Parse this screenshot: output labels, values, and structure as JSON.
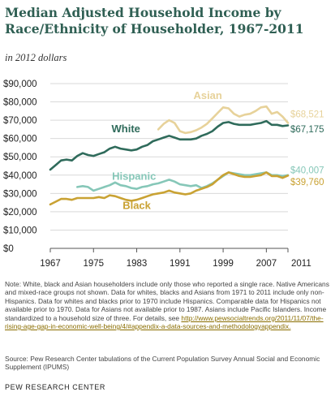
{
  "title": "Median Adjusted Household Income by Race/Ethnicity of Householder, 1967-2011",
  "subtitle": "in 2012 dollars",
  "note": {
    "text": "Note: White, black and Asian householders include only those who reported a single race. Native Americans and mixed-race groups not shown. Data for whites, blacks and Asians from 1971 to 2011 include only non-Hispanics. Data for whites and blacks prior to 1970 include Hispanics. Comparable data for Hispanics not available prior to 1970. Data for Asians not available prior to 1987. Asians include Pacific Islanders. Income standardized to a household size of three. For details, see",
    "link": "http://www.pewsocialtrends.org/2011/11/07/the-rising-age-gap-in-economic-well-being/4/#appendix-a-data-sources-and-methodologyappendix."
  },
  "source": "Source: Pew Research Center tabulations of the Current Population Survey Annual Social and Economic Supplement (IPUMS)",
  "brand": "PEW RESEARCH CENTER",
  "colors": {
    "white": "#2f6b5b",
    "asian": "#e7d29a",
    "hispanic": "#86c7b8",
    "black": "#c9a233",
    "grid": "#d9d9d9",
    "axis": "#555555"
  },
  "chart_data": {
    "type": "line",
    "ylim": [
      0,
      90000
    ],
    "xlim": [
      1967,
      2011
    ],
    "yticks": [
      "$90,000",
      "$80,000",
      "$70,000",
      "$60,000",
      "$50,000",
      "$40,000",
      "$30,000",
      "$20,000",
      "$10,000",
      "$0"
    ],
    "ytick_values": [
      90000,
      80000,
      70000,
      60000,
      50000,
      40000,
      30000,
      20000,
      10000,
      0
    ],
    "xticks": [
      "1967",
      "1975",
      "1983",
      "1991",
      "1999",
      "2007",
      "2011"
    ],
    "xtick_values": [
      1967,
      1975,
      1983,
      1991,
      1999,
      2007,
      2011
    ],
    "grid": "horizontal",
    "series": [
      {
        "key": "asian",
        "name": "Asian",
        "end_label": "$68,521",
        "points": [
          [
            1987,
            65000
          ],
          [
            1988,
            68000
          ],
          [
            1989,
            70000
          ],
          [
            1990,
            68500
          ],
          [
            1991,
            64000
          ],
          [
            1992,
            63000
          ],
          [
            1993,
            63500
          ],
          [
            1994,
            64500
          ],
          [
            1995,
            66000
          ],
          [
            1996,
            68000
          ],
          [
            1997,
            71000
          ],
          [
            1998,
            74000
          ],
          [
            1999,
            77000
          ],
          [
            2000,
            76500
          ],
          [
            2001,
            73500
          ],
          [
            2002,
            72000
          ],
          [
            2003,
            73000
          ],
          [
            2004,
            73500
          ],
          [
            2005,
            75000
          ],
          [
            2006,
            77000
          ],
          [
            2007,
            77500
          ],
          [
            2008,
            73500
          ],
          [
            2009,
            74500
          ],
          [
            2010,
            72000
          ],
          [
            2011,
            68521
          ]
        ]
      },
      {
        "key": "white",
        "name": "White",
        "end_label": "$67,175",
        "points": [
          [
            1967,
            43000
          ],
          [
            1968,
            45500
          ],
          [
            1969,
            48000
          ],
          [
            1970,
            48500
          ],
          [
            1971,
            48000
          ],
          [
            1972,
            50500
          ],
          [
            1973,
            52000
          ],
          [
            1974,
            51000
          ],
          [
            1975,
            50500
          ],
          [
            1976,
            51500
          ],
          [
            1977,
            52500
          ],
          [
            1978,
            54500
          ],
          [
            1979,
            55500
          ],
          [
            1980,
            54500
          ],
          [
            1981,
            54000
          ],
          [
            1982,
            53500
          ],
          [
            1983,
            54000
          ],
          [
            1984,
            55500
          ],
          [
            1985,
            56500
          ],
          [
            1986,
            58500
          ],
          [
            1987,
            59500
          ],
          [
            1988,
            60500
          ],
          [
            1989,
            61500
          ],
          [
            1990,
            60500
          ],
          [
            1991,
            59500
          ],
          [
            1992,
            59500
          ],
          [
            1993,
            59500
          ],
          [
            1994,
            60000
          ],
          [
            1995,
            61500
          ],
          [
            1996,
            62500
          ],
          [
            1997,
            64000
          ],
          [
            1998,
            66500
          ],
          [
            1999,
            68500
          ],
          [
            2000,
            69000
          ],
          [
            2001,
            68000
          ],
          [
            2002,
            67500
          ],
          [
            2003,
            67500
          ],
          [
            2004,
            67500
          ],
          [
            2005,
            68000
          ],
          [
            2006,
            68500
          ],
          [
            2007,
            69500
          ],
          [
            2008,
            67500
          ],
          [
            2009,
            67500
          ],
          [
            2010,
            66800
          ],
          [
            2011,
            67175
          ]
        ]
      },
      {
        "key": "hispanic",
        "name": "Hispanic",
        "end_label": "$40,007",
        "points": [
          [
            1972,
            33500
          ],
          [
            1973,
            34000
          ],
          [
            1974,
            33500
          ],
          [
            1975,
            31500
          ],
          [
            1976,
            32500
          ],
          [
            1977,
            33500
          ],
          [
            1978,
            34500
          ],
          [
            1979,
            36000
          ],
          [
            1980,
            34500
          ],
          [
            1981,
            34000
          ],
          [
            1982,
            33000
          ],
          [
            1983,
            32500
          ],
          [
            1984,
            33500
          ],
          [
            1985,
            34000
          ],
          [
            1986,
            35000
          ],
          [
            1987,
            35500
          ],
          [
            1988,
            36500
          ],
          [
            1989,
            37500
          ],
          [
            1990,
            36500
          ],
          [
            1991,
            35000
          ],
          [
            1992,
            34500
          ],
          [
            1993,
            34000
          ],
          [
            1994,
            34500
          ],
          [
            1995,
            33000
          ],
          [
            1996,
            34000
          ],
          [
            1997,
            35500
          ],
          [
            1998,
            37500
          ],
          [
            1999,
            39500
          ],
          [
            2000,
            41500
          ],
          [
            2001,
            41000
          ],
          [
            2002,
            40500
          ],
          [
            2003,
            40000
          ],
          [
            2004,
            40000
          ],
          [
            2005,
            40500
          ],
          [
            2006,
            41000
          ],
          [
            2007,
            41500
          ],
          [
            2008,
            40000
          ],
          [
            2009,
            40000
          ],
          [
            2010,
            39500
          ],
          [
            2011,
            40007
          ]
        ]
      },
      {
        "key": "black",
        "name": "Black",
        "end_label": "$39,760",
        "points": [
          [
            1967,
            24000
          ],
          [
            1968,
            25500
          ],
          [
            1969,
            27000
          ],
          [
            1970,
            27000
          ],
          [
            1971,
            26500
          ],
          [
            1972,
            27500
          ],
          [
            1973,
            27500
          ],
          [
            1974,
            27500
          ],
          [
            1975,
            27500
          ],
          [
            1976,
            28000
          ],
          [
            1977,
            27500
          ],
          [
            1978,
            29000
          ],
          [
            1979,
            28500
          ],
          [
            1980,
            27500
          ],
          [
            1981,
            26500
          ],
          [
            1982,
            26000
          ],
          [
            1983,
            26500
          ],
          [
            1984,
            27500
          ],
          [
            1985,
            28500
          ],
          [
            1986,
            29500
          ],
          [
            1987,
            30000
          ],
          [
            1988,
            30500
          ],
          [
            1989,
            31500
          ],
          [
            1990,
            30500
          ],
          [
            1991,
            30000
          ],
          [
            1992,
            29500
          ],
          [
            1993,
            30000
          ],
          [
            1994,
            31500
          ],
          [
            1995,
            32500
          ],
          [
            1996,
            33500
          ],
          [
            1997,
            35000
          ],
          [
            1998,
            37500
          ],
          [
            1999,
            40000
          ],
          [
            2000,
            41500
          ],
          [
            2001,
            40500
          ],
          [
            2002,
            39500
          ],
          [
            2003,
            39000
          ],
          [
            2004,
            39000
          ],
          [
            2005,
            39500
          ],
          [
            2006,
            40000
          ],
          [
            2007,
            41500
          ],
          [
            2008,
            39500
          ],
          [
            2009,
            39500
          ],
          [
            2010,
            38500
          ],
          [
            2011,
            39760
          ]
        ]
      }
    ]
  }
}
